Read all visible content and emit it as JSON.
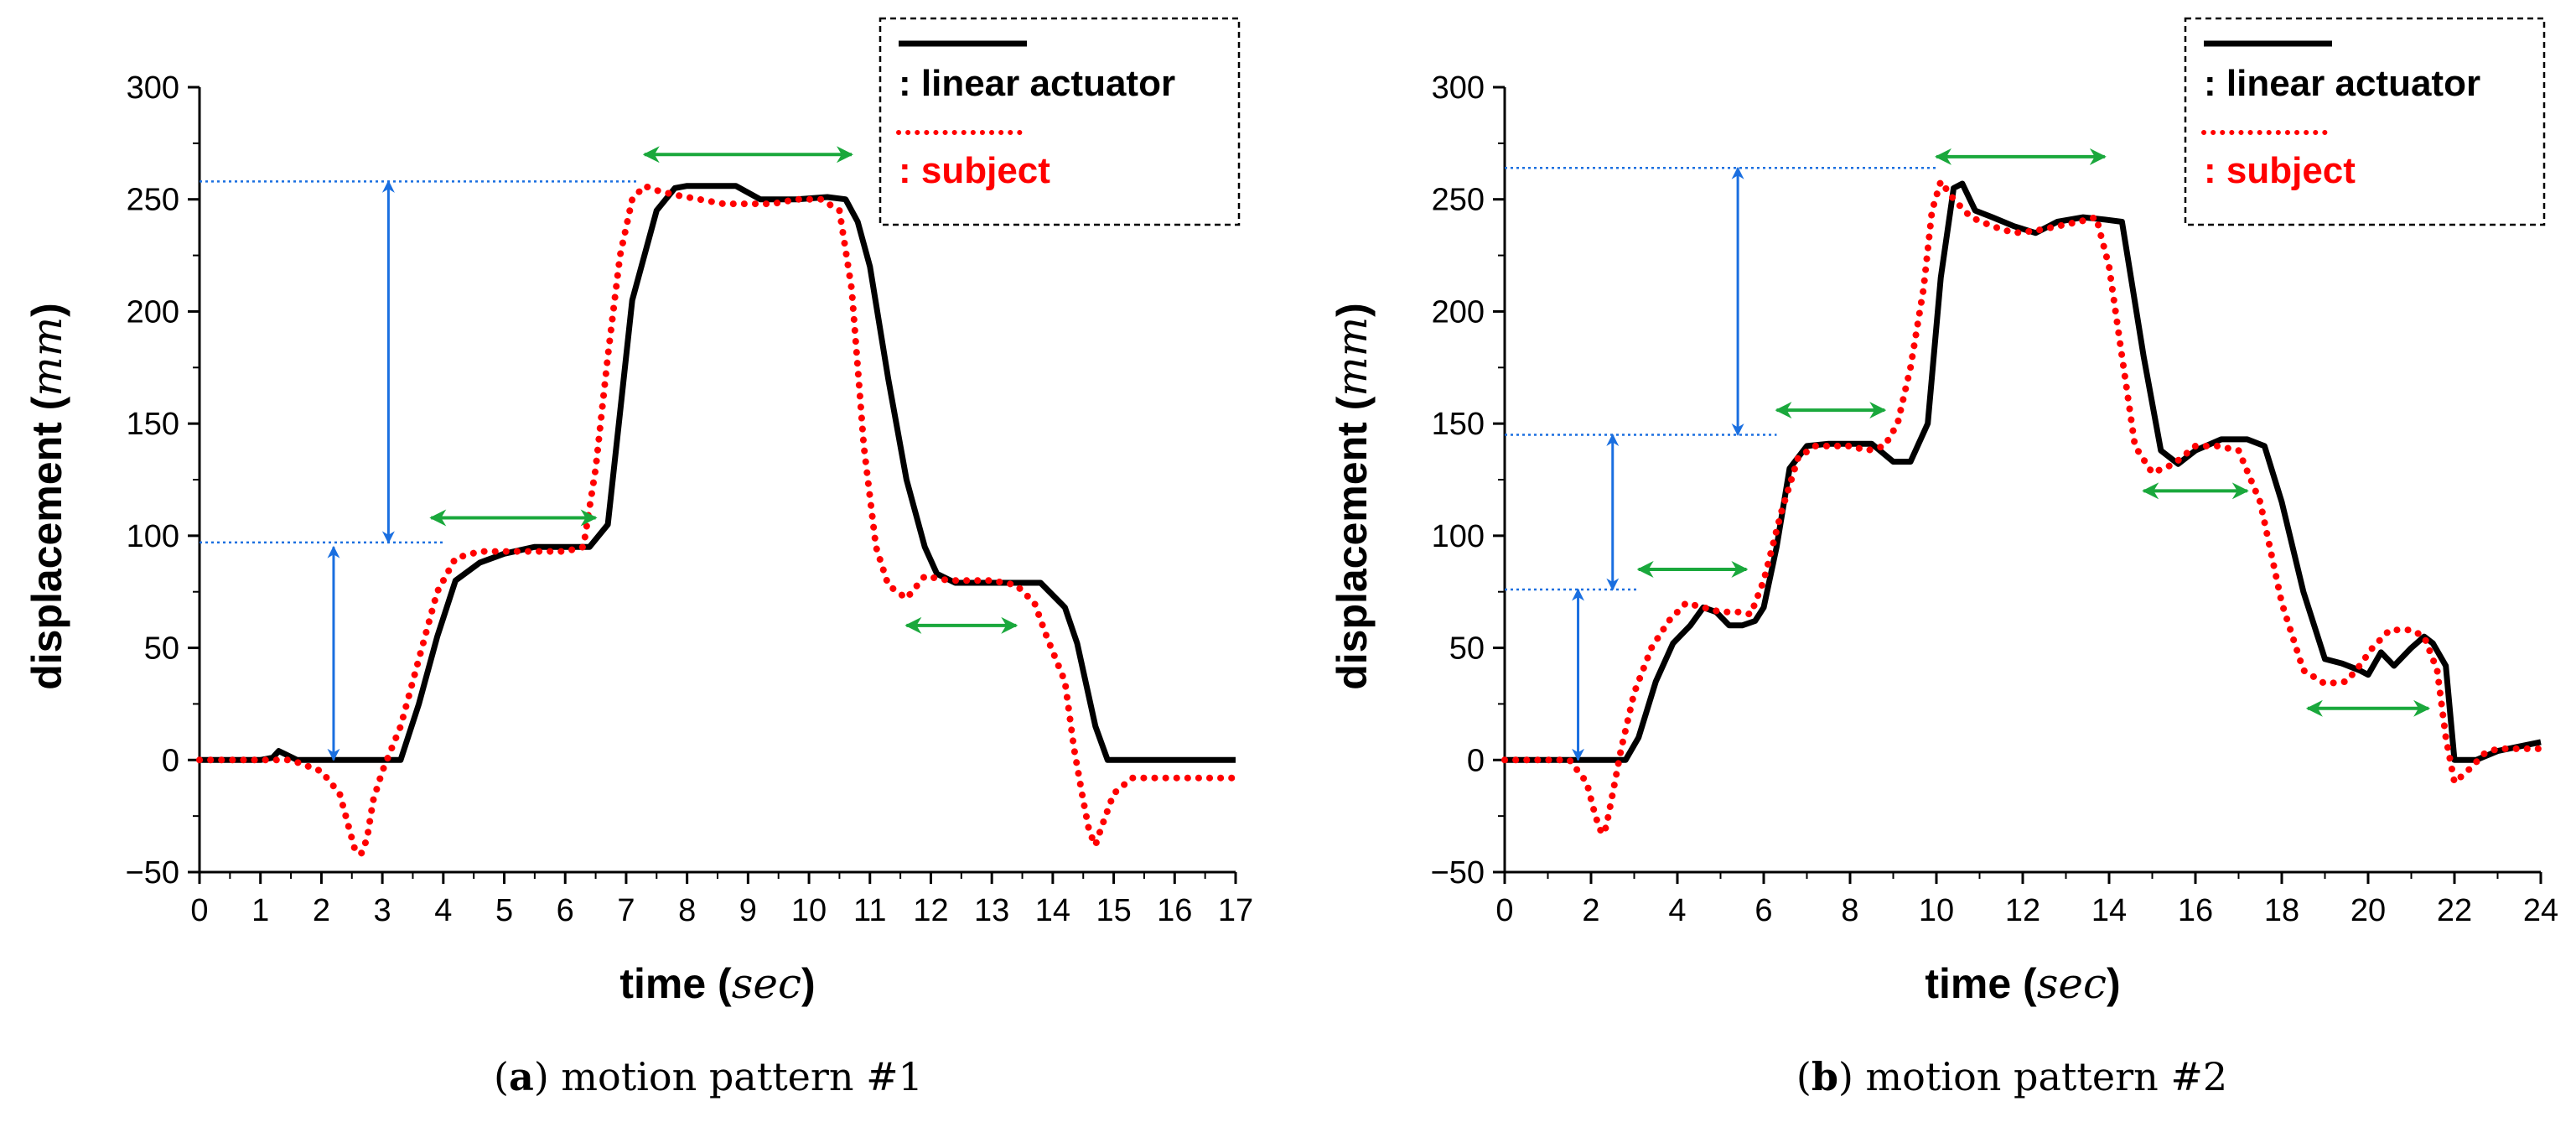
{
  "figure_domain": "Chart",
  "colors": {
    "actuator": "#000000",
    "subject": "#ff0000",
    "level_guides": "#1a6fe0",
    "phase_arrows": "#1aa83c",
    "legend_border": "#000000"
  },
  "legend": {
    "actuator_label": ": linear actuator",
    "subject_label": ": subject"
  },
  "chart_data": [
    {
      "type": "line",
      "caption_letter": "a",
      "caption_text": " motion pattern #1",
      "xlabel_main": "time (",
      "xlabel_unit": "sec",
      "xlabel_close": ")",
      "ylabel_main": "displacement (",
      "ylabel_unit": "mm",
      "ylabel_close": ")",
      "xlim": [
        0,
        17
      ],
      "ylim": [
        -50,
        300
      ],
      "xticks": [
        0,
        1,
        2,
        3,
        4,
        5,
        6,
        7,
        8,
        9,
        10,
        11,
        12,
        13,
        14,
        15,
        16,
        17
      ],
      "yticks": [
        -50,
        0,
        50,
        100,
        150,
        200,
        250,
        300
      ],
      "ytick_labels": [
        "−50",
        "0",
        "50",
        "100",
        "150",
        "200",
        "250",
        "300"
      ],
      "legend_position": "top-right",
      "series": [
        {
          "name": "linear actuator",
          "style": "solid",
          "x": [
            0,
            1,
            1.2,
            1.3,
            1.45,
            1.6,
            2,
            2.8,
            3.1,
            3.3,
            3.6,
            3.9,
            4.2,
            4.6,
            5,
            5.5,
            6,
            6.4,
            6.7,
            6.9,
            7.1,
            7.5,
            7.8,
            8,
            8.8,
            9.0,
            9.2,
            9.8,
            10.3,
            10.6,
            10.8,
            11.0,
            11.3,
            11.6,
            11.9,
            12.1,
            12.4,
            12.8,
            13.6,
            13.8,
            14.2,
            14.4,
            14.7,
            14.9,
            15.2,
            17
          ],
          "y": [
            0,
            0,
            1,
            4,
            2,
            0,
            0,
            0,
            0,
            0,
            25,
            55,
            80,
            88,
            92,
            95,
            95,
            95,
            105,
            155,
            205,
            245,
            255,
            256,
            256,
            253,
            250,
            250,
            251,
            250,
            240,
            220,
            170,
            125,
            95,
            83,
            79,
            79,
            79,
            79,
            68,
            52,
            15,
            0,
            0,
            0
          ]
        },
        {
          "name": "subject",
          "style": "dotted",
          "x": [
            0,
            1.0,
            1.5,
            2.0,
            2.3,
            2.45,
            2.55,
            2.65,
            2.75,
            2.85,
            3.0,
            3.3,
            3.6,
            3.9,
            4.2,
            4.6,
            5,
            5.5,
            6,
            6.3,
            6.5,
            6.7,
            6.9,
            7.1,
            7.3,
            7.5,
            7.8,
            8.2,
            8.6,
            9.0,
            9.4,
            9.8,
            10.2,
            10.5,
            10.7,
            10.9,
            11.1,
            11.3,
            11.6,
            11.9,
            12.3,
            12.6,
            13,
            13.4,
            13.7,
            13.9,
            14.2,
            14.35,
            14.5,
            14.6,
            14.7,
            14.8,
            15.0,
            15.3,
            15.7,
            16.5,
            17
          ],
          "y": [
            0,
            0,
            0,
            -5,
            -15,
            -30,
            -40,
            -42,
            -35,
            -18,
            -5,
            15,
            45,
            75,
            90,
            93,
            93,
            93,
            93,
            95,
            130,
            180,
            225,
            250,
            256,
            254,
            252,
            250,
            248,
            248,
            248,
            250,
            250,
            245,
            210,
            140,
            95,
            78,
            72,
            82,
            80,
            80,
            80,
            78,
            70,
            55,
            35,
            5,
            -18,
            -32,
            -38,
            -30,
            -15,
            -8,
            -8,
            -8,
            -8
          ]
        }
      ],
      "arrows_vertical": [
        {
          "x": 2.2,
          "y1": 0,
          "y2": 95
        },
        {
          "x": 3.1,
          "y1": 97,
          "y2": 258
        }
      ],
      "level_guides": [
        {
          "y": 97,
          "x1": 0,
          "x2": 4.0
        },
        {
          "y": 258,
          "x1": 0,
          "x2": 7.2
        }
      ],
      "arrows_horizontal": [
        {
          "y": 108,
          "x1": 3.8,
          "x2": 6.5
        },
        {
          "y": 270,
          "x1": 7.3,
          "x2": 10.7
        },
        {
          "y": 60,
          "x1": 11.6,
          "x2": 13.4
        }
      ]
    },
    {
      "type": "line",
      "caption_letter": "b",
      "caption_text": " motion pattern #2",
      "xlabel_main": "time (",
      "xlabel_unit": "sec",
      "xlabel_close": ")",
      "ylabel_main": "displacement (",
      "ylabel_unit": "mm",
      "ylabel_close": ")",
      "xlim": [
        0,
        24
      ],
      "ylim": [
        -50,
        300
      ],
      "xticks": [
        0,
        2,
        4,
        6,
        8,
        10,
        12,
        14,
        16,
        18,
        20,
        22,
        24
      ],
      "yticks": [
        -50,
        0,
        50,
        100,
        150,
        200,
        250,
        300
      ],
      "ytick_labels": [
        "−50",
        "0",
        "50",
        "100",
        "150",
        "200",
        "250",
        "300"
      ],
      "legend_position": "top-right",
      "series": [
        {
          "name": "linear actuator",
          "style": "solid",
          "x": [
            0,
            2,
            2.8,
            3.1,
            3.5,
            3.9,
            4.3,
            4.6,
            4.9,
            5.2,
            5.5,
            5.8,
            6.0,
            6.3,
            6.6,
            7.0,
            7.5,
            8,
            8.5,
            9,
            9.4,
            9.8,
            10.1,
            10.4,
            10.6,
            10.9,
            11.3,
            11.8,
            12.3,
            12.8,
            13.4,
            13.9,
            14.3,
            14.8,
            15.2,
            15.6,
            16,
            16.6,
            17.2,
            17.6,
            18,
            18.5,
            19,
            19.4,
            19.8,
            20,
            20.3,
            20.6,
            21,
            21.3,
            21.5,
            21.8,
            22.0,
            22.5,
            23,
            23.5,
            24
          ],
          "y": [
            0,
            0,
            0,
            10,
            35,
            52,
            60,
            68,
            66,
            60,
            60,
            62,
            68,
            95,
            130,
            140,
            141,
            141,
            141,
            133,
            133,
            150,
            215,
            255,
            257,
            245,
            242,
            238,
            235,
            240,
            242,
            241,
            240,
            180,
            138,
            132,
            138,
            143,
            143,
            140,
            115,
            75,
            45,
            43,
            40,
            38,
            48,
            42,
            50,
            55,
            52,
            42,
            0,
            0,
            4,
            6,
            8
          ]
        },
        {
          "name": "subject",
          "style": "dotted",
          "x": [
            0,
            1.5,
            1.9,
            2.1,
            2.25,
            2.35,
            2.5,
            2.7,
            3.0,
            3.4,
            3.8,
            4.2,
            4.6,
            5,
            5.4,
            5.7,
            6.0,
            6.4,
            6.8,
            7.2,
            7.6,
            8,
            8.4,
            8.8,
            9.1,
            9.4,
            9.7,
            9.9,
            10.1,
            10.4,
            10.8,
            11.3,
            11.8,
            12.3,
            12.8,
            13.3,
            13.7,
            14.0,
            14.3,
            14.6,
            15.0,
            15.5,
            16,
            16.5,
            17,
            17.5,
            18,
            18.5,
            19,
            19.5,
            19.8,
            20.1,
            20.5,
            21,
            21.3,
            21.6,
            21.8,
            22.0,
            22.3,
            22.7,
            23,
            23.5,
            24
          ],
          "y": [
            0,
            0,
            -10,
            -25,
            -33,
            -30,
            -15,
            5,
            30,
            50,
            62,
            70,
            68,
            66,
            66,
            65,
            80,
            110,
            135,
            140,
            140,
            140,
            138,
            140,
            150,
            175,
            210,
            245,
            258,
            250,
            242,
            238,
            235,
            236,
            238,
            240,
            242,
            220,
            180,
            140,
            128,
            132,
            140,
            140,
            138,
            115,
            70,
            40,
            34,
            35,
            42,
            50,
            58,
            58,
            55,
            40,
            10,
            -10,
            -5,
            3,
            5,
            5,
            5
          ]
        }
      ],
      "arrows_vertical": [
        {
          "x": 1.7,
          "y1": 0,
          "y2": 76
        },
        {
          "x": 2.5,
          "y1": 76,
          "y2": 145
        },
        {
          "x": 5.4,
          "y1": 145,
          "y2": 264
        }
      ],
      "level_guides": [
        {
          "y": 76,
          "x1": 0,
          "x2": 3.1
        },
        {
          "y": 145,
          "x1": 0,
          "x2": 6.3
        },
        {
          "y": 264,
          "x1": 0,
          "x2": 10.0
        }
      ],
      "arrows_horizontal": [
        {
          "y": 85,
          "x1": 3.1,
          "x2": 5.6
        },
        {
          "y": 156,
          "x1": 6.3,
          "x2": 8.8
        },
        {
          "y": 269,
          "x1": 10.0,
          "x2": 13.9
        },
        {
          "y": 120,
          "x1": 14.8,
          "x2": 17.2
        },
        {
          "y": 23,
          "x1": 18.6,
          "x2": 21.4
        }
      ]
    }
  ]
}
